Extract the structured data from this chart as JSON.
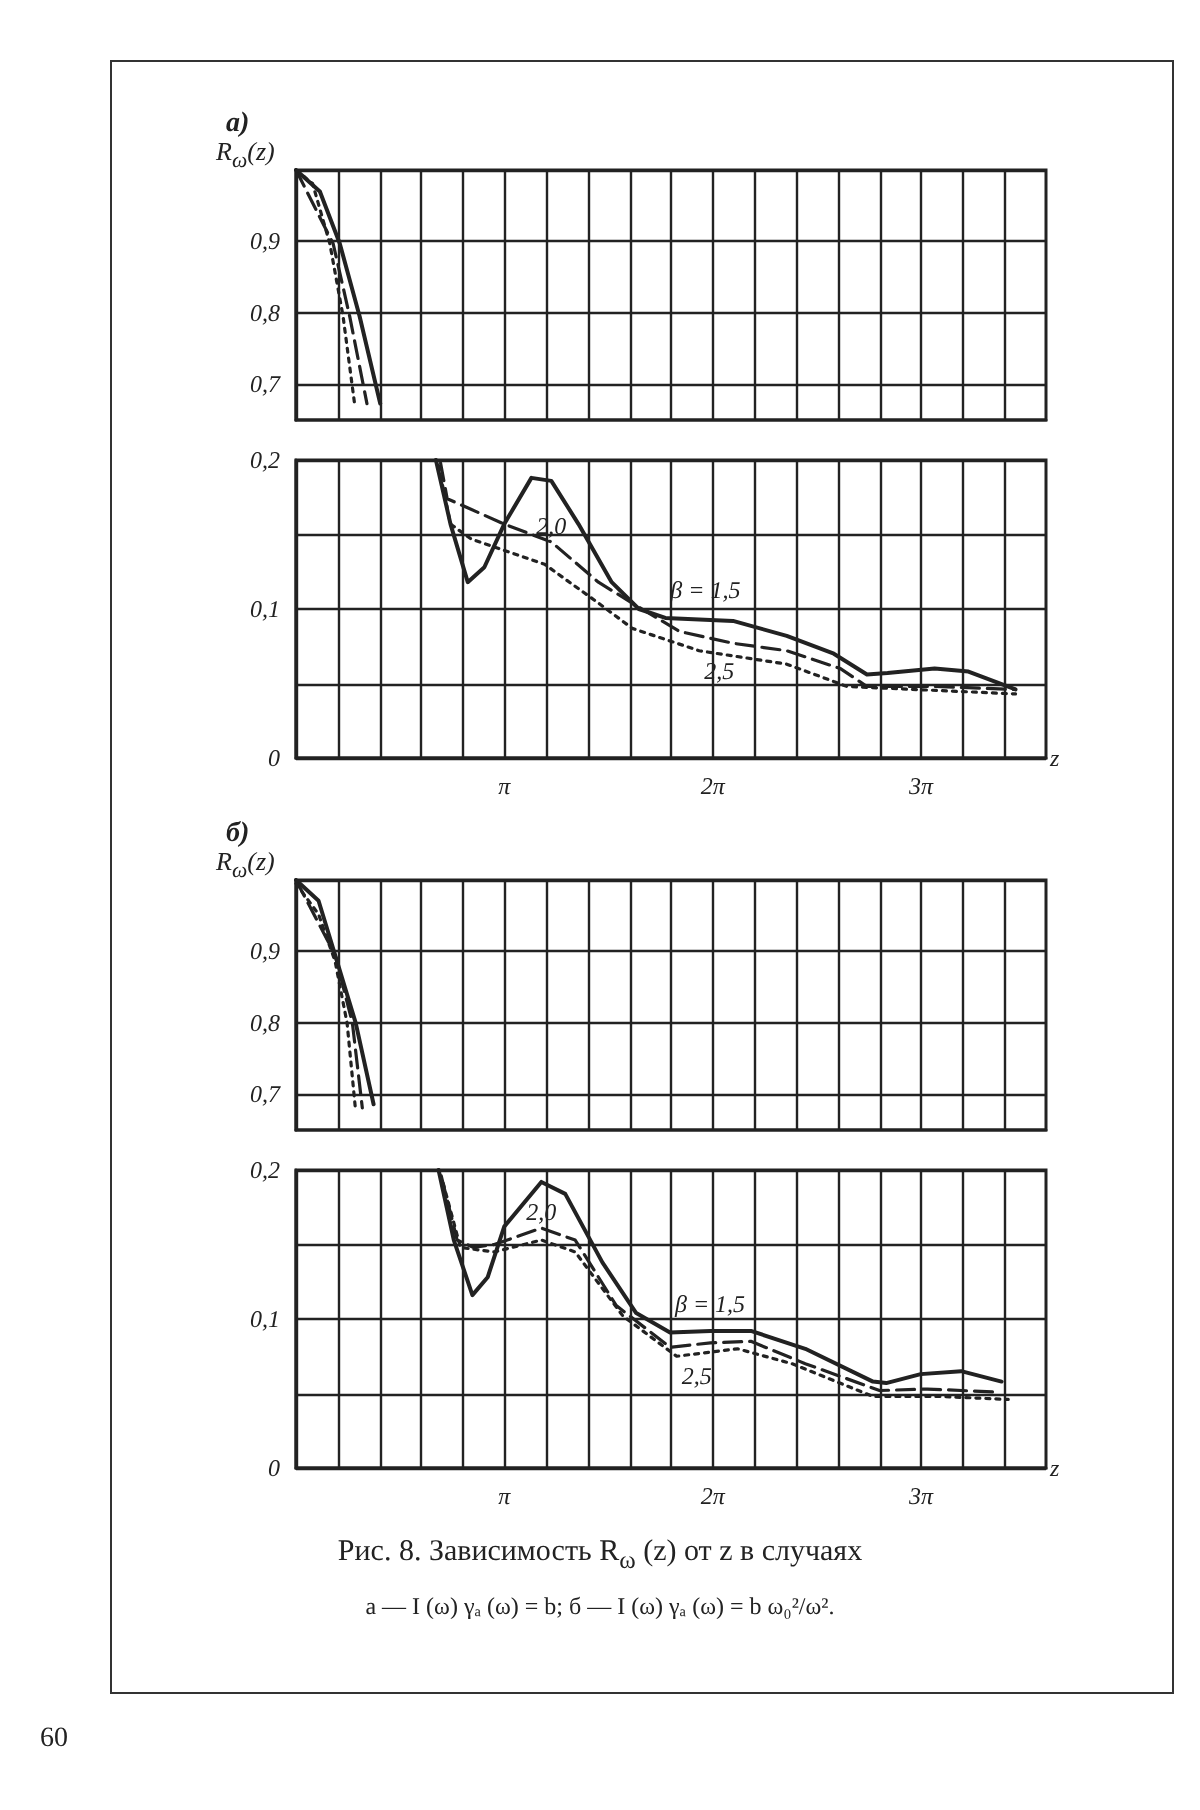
{
  "chart_data": [
    {
      "type": "line",
      "title": "a)",
      "ylabel": "R$_{ω}$(z)",
      "tick_labels": "y",
      "grid": true,
      "marker": "none",
      "xlim": [
        0,
        11.3097
      ],
      "xticks": [
        {
          "value": 0,
          "label": null
        },
        {
          "value": 0.6283,
          "label": null
        },
        {
          "value": 1.2566,
          "label": null
        },
        {
          "value": 1.885,
          "label": null
        },
        {
          "value": 2.5133,
          "label": null
        },
        {
          "value": 3.1416,
          "label": null
        },
        {
          "value": 3.7699,
          "label": null
        },
        {
          "value": 4.3982,
          "label": null
        },
        {
          "value": 5.0265,
          "label": null
        },
        {
          "value": 5.6549,
          "label": null
        },
        {
          "value": 6.2832,
          "label": null
        },
        {
          "value": 6.9115,
          "label": null
        },
        {
          "value": 7.5398,
          "label": null
        },
        {
          "value": 8.1681,
          "label": null
        },
        {
          "value": 8.7965,
          "label": null
        },
        {
          "value": 9.4248,
          "label": null
        },
        {
          "value": 10.0531,
          "label": null
        },
        {
          "value": 10.6814,
          "label": null
        },
        {
          "value": 11.3097,
          "label": null
        }
      ],
      "ylim": [
        0.65,
        1.0
      ],
      "yticks": [
        {
          "value": 0.7,
          "label": "0,7"
        },
        {
          "value": 0.8,
          "label": "0,8"
        },
        {
          "value": 0.9,
          "label": "0,9"
        },
        {
          "value": 1.0,
          "label": null
        }
      ],
      "series": [
        {
          "color": "#222222",
          "line_style": "solid",
          "x": [
            0,
            0.36,
            0.66,
            0.96,
            1.27
          ],
          "values": [
            1.0,
            0.97,
            0.897,
            0.795,
            0.673
          ]
        },
        {
          "color": "#222222",
          "line_style": "dashed",
          "x": [
            0,
            0.56,
            0.81,
            1.07
          ],
          "values": [
            1.0,
            0.897,
            0.795,
            0.673
          ]
        },
        {
          "color": "#222222",
          "line_style": "dotted",
          "x": [
            0,
            0.25,
            0.51,
            0.71,
            0.89
          ],
          "values": [
            1.0,
            0.981,
            0.897,
            0.795,
            0.668
          ]
        }
      ]
    },
    {
      "type": "line",
      "xlabel": "z",
      "grid": true,
      "marker": "none",
      "xlim": [
        0,
        11.3097
      ],
      "xticks": [
        {
          "value": 0,
          "label": null
        },
        {
          "value": 0.6283,
          "label": null
        },
        {
          "value": 1.2566,
          "label": null
        },
        {
          "value": 1.885,
          "label": null
        },
        {
          "value": 2.5133,
          "label": null
        },
        {
          "value": 3.1416,
          "label": "π"
        },
        {
          "value": 3.7699,
          "label": null
        },
        {
          "value": 4.3982,
          "label": null
        },
        {
          "value": 5.0265,
          "label": null
        },
        {
          "value": 5.6549,
          "label": null
        },
        {
          "value": 6.2832,
          "label": "2π"
        },
        {
          "value": 6.9115,
          "label": null
        },
        {
          "value": 7.5398,
          "label": null
        },
        {
          "value": 8.1681,
          "label": null
        },
        {
          "value": 8.7965,
          "label": null
        },
        {
          "value": 9.4248,
          "label": "3π"
        },
        {
          "value": 10.0531,
          "label": null
        },
        {
          "value": 10.6814,
          "label": null
        },
        {
          "value": 11.3097,
          "label": null
        }
      ],
      "ylim": [
        0,
        0.2
      ],
      "yticks": [
        0,
        {
          "value": 0.05,
          "label": null
        },
        {
          "value": 0.1,
          "label": "0,1"
        },
        {
          "value": 0.15,
          "label": null
        },
        {
          "value": 0.2,
          "label": "0,2"
        }
      ],
      "series": [
        {
          "name": "β = 1,5",
          "color": "#222222",
          "line_style": "solid",
          "x": [
            2.11,
            2.33,
            2.59,
            2.84,
            3.14,
            3.55,
            3.85,
            4.26,
            4.76,
            5.17,
            5.57,
            6.59,
            7.4,
            8.11,
            8.61,
            8.92,
            9.63,
            10.14,
            10.85
          ],
          "values": [
            0.2,
            0.157,
            0.118,
            0.128,
            0.157,
            0.188,
            0.186,
            0.157,
            0.118,
            0.1,
            0.094,
            0.092,
            0.082,
            0.07,
            0.056,
            0.057,
            0.06,
            0.058,
            0.046
          ]
        },
        {
          "name": "2,0",
          "color": "#222222",
          "line_style": "dashed",
          "x": [
            2.18,
            2.28,
            3.14,
            3.85,
            4.56,
            5.07,
            5.78,
            6.59,
            7.4,
            8.21,
            8.61,
            9.63,
            10.85
          ],
          "values": [
            0.198,
            0.174,
            0.157,
            0.145,
            0.118,
            0.104,
            0.085,
            0.077,
            0.072,
            0.06,
            0.048,
            0.048,
            0.046
          ]
        },
        {
          "name": "2,5",
          "color": "#222222",
          "line_style": "dotted",
          "x": [
            2.15,
            2.33,
            2.64,
            3.75,
            4.56,
            5.07,
            6.08,
            7.4,
            8.31,
            10.85
          ],
          "values": [
            0.196,
            0.157,
            0.147,
            0.13,
            0.104,
            0.087,
            0.072,
            0.063,
            0.048,
            0.043
          ]
        }
      ]
    },
    {
      "type": "line",
      "title": "б)",
      "ylabel": "R$_{ω}$(z)",
      "tick_labels": "y",
      "grid": true,
      "marker": "none",
      "xlim": [
        0,
        11.3097
      ],
      "xticks": [
        {
          "value": 0,
          "label": null
        },
        {
          "value": 0.6283,
          "label": null
        },
        {
          "value": 1.2566,
          "label": null
        },
        {
          "value": 1.885,
          "label": null
        },
        {
          "value": 2.5133,
          "label": null
        },
        {
          "value": 3.1416,
          "label": null
        },
        {
          "value": 3.7699,
          "label": null
        },
        {
          "value": 4.3982,
          "label": null
        },
        {
          "value": 5.0265,
          "label": null
        },
        {
          "value": 5.6549,
          "label": null
        },
        {
          "value": 6.2832,
          "label": null
        },
        {
          "value": 6.9115,
          "label": null
        },
        {
          "value": 7.5398,
          "label": null
        },
        {
          "value": 8.1681,
          "label": null
        },
        {
          "value": 8.7965,
          "label": null
        },
        {
          "value": 9.4248,
          "label": null
        },
        {
          "value": 10.0531,
          "label": null
        },
        {
          "value": 10.6814,
          "label": null
        },
        {
          "value": 11.3097,
          "label": null
        }
      ],
      "ylim": [
        0.65,
        1.0
      ],
      "yticks": [
        {
          "value": 0.7,
          "label": "0,7"
        },
        {
          "value": 0.8,
          "label": "0,8"
        },
        {
          "value": 0.9,
          "label": "0,9"
        },
        {
          "value": 1.0,
          "label": null
        }
      ],
      "series": [
        {
          "color": "#222222",
          "line_style": "solid",
          "x": [
            0,
            0.34,
            0.59,
            0.9,
            1.17
          ],
          "values": [
            1.0,
            0.971,
            0.895,
            0.8,
            0.686
          ]
        },
        {
          "color": "#222222",
          "line_style": "dashed",
          "x": [
            0,
            0.59,
            0.85,
            1.0
          ],
          "values": [
            1.0,
            0.895,
            0.8,
            0.681
          ]
        },
        {
          "color": "#222222",
          "line_style": "dotted",
          "x": [
            0,
            0.34,
            0.59,
            0.77,
            0.9
          ],
          "values": [
            0.995,
            0.952,
            0.886,
            0.8,
            0.676
          ]
        }
      ]
    },
    {
      "type": "line",
      "xlabel": "z",
      "grid": true,
      "marker": "none",
      "xlim": [
        0,
        11.3097
      ],
      "xticks": [
        {
          "value": 0,
          "label": null
        },
        {
          "value": 0.6283,
          "label": null
        },
        {
          "value": 1.2566,
          "label": null
        },
        {
          "value": 1.885,
          "label": null
        },
        {
          "value": 2.5133,
          "label": null
        },
        {
          "value": 3.1416,
          "label": "π"
        },
        {
          "value": 3.7699,
          "label": null
        },
        {
          "value": 4.3982,
          "label": null
        },
        {
          "value": 5.0265,
          "label": null
        },
        {
          "value": 5.6549,
          "label": null
        },
        {
          "value": 6.2832,
          "label": "2π"
        },
        {
          "value": 6.9115,
          "label": null
        },
        {
          "value": 7.5398,
          "label": null
        },
        {
          "value": 8.1681,
          "label": null
        },
        {
          "value": 8.7965,
          "label": null
        },
        {
          "value": 9.4248,
          "label": "3π"
        },
        {
          "value": 10.0531,
          "label": null
        },
        {
          "value": 10.6814,
          "label": null
        },
        {
          "value": 11.3097,
          "label": null
        }
      ],
      "ylim": [
        0,
        0.2
      ],
      "yticks": [
        0,
        {
          "value": 0.05,
          "label": null
        },
        {
          "value": 0.1,
          "label": "0,1"
        },
        {
          "value": 0.15,
          "label": null
        },
        {
          "value": 0.2,
          "label": "0,2"
        }
      ],
      "series": [
        {
          "name": "β = 1,5",
          "color": "#222222",
          "line_style": "solid",
          "x": [
            2.15,
            2.38,
            2.66,
            2.89,
            3.14,
            3.7,
            4.06,
            4.62,
            5.13,
            5.64,
            6.25,
            6.86,
            7.68,
            8.7,
            8.9,
            9.42,
            10.03,
            10.64
          ],
          "values": [
            0.2,
            0.153,
            0.116,
            0.128,
            0.162,
            0.192,
            0.184,
            0.138,
            0.104,
            0.091,
            0.092,
            0.092,
            0.08,
            0.058,
            0.057,
            0.063,
            0.065,
            0.058
          ]
        },
        {
          "name": "2,0",
          "color": "#222222",
          "line_style": "dashed",
          "x": [
            2.19,
            2.43,
            2.68,
            2.99,
            3.7,
            4.21,
            4.83,
            5.64,
            6.25,
            6.86,
            7.68,
            8.8,
            9.52,
            10.54
          ],
          "values": [
            0.196,
            0.153,
            0.148,
            0.15,
            0.161,
            0.153,
            0.109,
            0.081,
            0.084,
            0.085,
            0.07,
            0.052,
            0.053,
            0.051
          ]
        },
        {
          "name": "2,5",
          "color": "#222222",
          "line_style": "dotted",
          "x": [
            2.22,
            2.48,
            2.99,
            3.7,
            4.21,
            4.93,
            5.74,
            6.66,
            7.48,
            8.7,
            9.72,
            10.74
          ],
          "values": [
            0.191,
            0.148,
            0.145,
            0.153,
            0.145,
            0.102,
            0.075,
            0.08,
            0.07,
            0.048,
            0.048,
            0.046
          ]
        }
      ],
      "annotations": [
        "Рис. 8. Зависимость R$_{ω}$ (z) от z в случаях",
        "a — I (ω) γₐ (ω) = b;  б — I (ω) γₐ (ω) = b ω₀²/ω².",
        "60"
      ]
    }
  ]
}
